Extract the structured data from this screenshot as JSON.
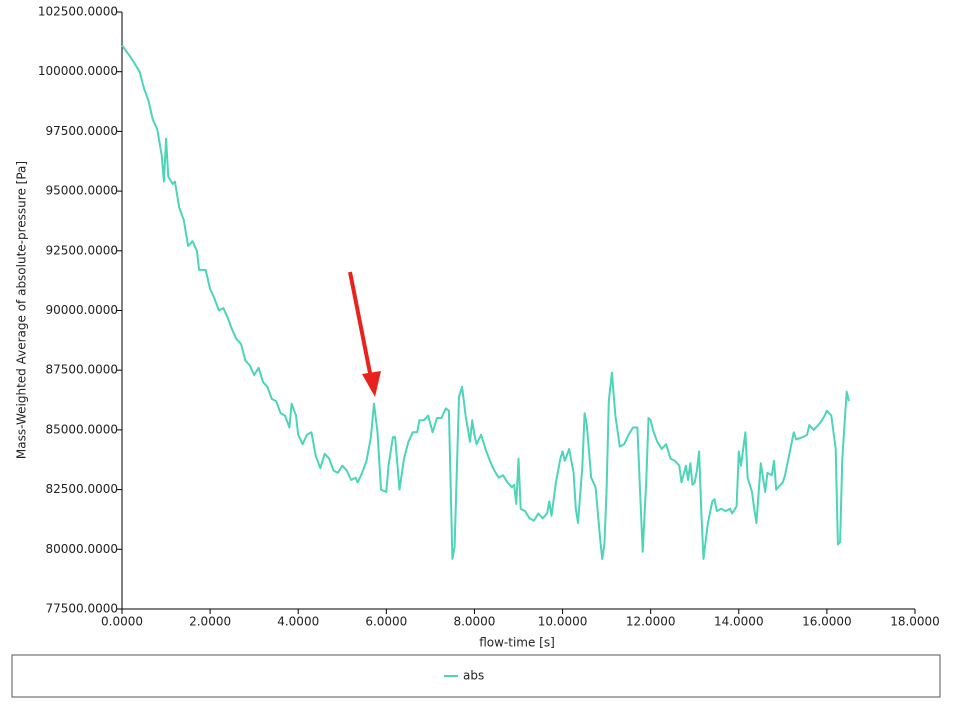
{
  "chart_data": {
    "type": "line",
    "xlabel": "flow-time [s]",
    "ylabel": "Mass-Weighted Average of absolute-pressure [Pa]",
    "xlim": [
      0,
      18
    ],
    "xticks": [
      {
        "value": 0,
        "label": "0.0000"
      },
      {
        "value": 2,
        "label": "2.0000"
      },
      {
        "value": 4,
        "label": "4.0000"
      },
      {
        "value": 6,
        "label": "6.0000"
      },
      {
        "value": 8,
        "label": "8.0000"
      },
      {
        "value": 10,
        "label": "10.0000"
      },
      {
        "value": 12,
        "label": "12.0000"
      },
      {
        "value": 14,
        "label": "14.0000"
      },
      {
        "value": 16,
        "label": "16.0000"
      },
      {
        "value": 18,
        "label": "18.0000"
      }
    ],
    "ylim": [
      77500,
      102500
    ],
    "yticks": [
      {
        "value": 77500,
        "label": "77500.0000"
      },
      {
        "value": 80000,
        "label": "80000.0000"
      },
      {
        "value": 82500,
        "label": "82500.0000"
      },
      {
        "value": 85000,
        "label": "85000.0000"
      },
      {
        "value": 87500,
        "label": "87500.0000"
      },
      {
        "value": 90000,
        "label": "90000.0000"
      },
      {
        "value": 92500,
        "label": "92500.0000"
      },
      {
        "value": 95000,
        "label": "95000.0000"
      },
      {
        "value": 97500,
        "label": "97500.0000"
      },
      {
        "value": 100000,
        "label": "100000.0000"
      },
      {
        "value": 102500,
        "label": "102500.0000"
      }
    ],
    "x": [
      0,
      0.2,
      0.4,
      0.5,
      0.6,
      0.7,
      0.8,
      0.9,
      0.95,
      1.0,
      1.05,
      1.15,
      1.2,
      1.3,
      1.4,
      1.5,
      1.6,
      1.7,
      1.75,
      1.9,
      2.0,
      2.1,
      2.2,
      2.3,
      2.4,
      2.5,
      2.6,
      2.7,
      2.8,
      2.9,
      3.0,
      3.1,
      3.2,
      3.3,
      3.4,
      3.5,
      3.6,
      3.7,
      3.8,
      3.85,
      3.95,
      4.0,
      4.1,
      4.2,
      4.3,
      4.4,
      4.5,
      4.6,
      4.7,
      4.8,
      4.9,
      5.0,
      5.1,
      5.2,
      5.3,
      5.35,
      5.45,
      5.55,
      5.65,
      5.72,
      5.8,
      5.88,
      6.0,
      6.05,
      6.15,
      6.2,
      6.3,
      6.4,
      6.5,
      6.6,
      6.7,
      6.75,
      6.85,
      6.95,
      7.05,
      7.15,
      7.25,
      7.35,
      7.42,
      7.5,
      7.55,
      7.65,
      7.72,
      7.8,
      7.9,
      7.95,
      8.0,
      8.05,
      8.15,
      8.25,
      8.35,
      8.45,
      8.55,
      8.65,
      8.75,
      8.85,
      8.9,
      8.95,
      9.0,
      9.05,
      9.15,
      9.25,
      9.35,
      9.45,
      9.55,
      9.65,
      9.7,
      9.75,
      9.85,
      9.95,
      10.0,
      10.05,
      10.15,
      10.25,
      10.3,
      10.35,
      10.45,
      10.5,
      10.55,
      10.65,
      10.75,
      10.85,
      10.9,
      10.95,
      11.0,
      11.05,
      11.12,
      11.2,
      11.3,
      11.4,
      11.5,
      11.6,
      11.7,
      11.75,
      11.82,
      11.9,
      11.95,
      12.0,
      12.05,
      12.15,
      12.25,
      12.35,
      12.45,
      12.55,
      12.65,
      12.7,
      12.8,
      12.85,
      12.9,
      12.95,
      13.0,
      13.05,
      13.1,
      13.15,
      13.2,
      13.3,
      13.4,
      13.45,
      13.5,
      13.6,
      13.7,
      13.8,
      13.85,
      13.95,
      14.0,
      14.05,
      14.15,
      14.2,
      14.3,
      14.35,
      14.4,
      14.5,
      14.6,
      14.65,
      14.75,
      14.8,
      14.85,
      15.0,
      15.05,
      15.15,
      15.25,
      15.3,
      15.45,
      15.55,
      15.6,
      15.7,
      15.85,
      15.95,
      16.0,
      16.1,
      16.2,
      16.25,
      16.3,
      16.35,
      16.45,
      16.5
    ],
    "series": [
      {
        "name": "abs",
        "color": "#4dd4b9",
        "values": [
          101100,
          100600,
          100000,
          99300,
          98800,
          98000,
          97600,
          96500,
          95400,
          97200,
          95600,
          95300,
          95400,
          94300,
          93800,
          92700,
          92900,
          92500,
          91700,
          91700,
          90900,
          90500,
          90000,
          90100,
          89700,
          89200,
          88800,
          88600,
          87900,
          87700,
          87300,
          87600,
          87000,
          86800,
          86300,
          86200,
          85700,
          85600,
          85100,
          86100,
          85600,
          84800,
          84400,
          84800,
          84900,
          83900,
          83400,
          84000,
          83800,
          83300,
          83200,
          83500,
          83300,
          82900,
          83000,
          82800,
          83200,
          83700,
          84700,
          86100,
          84900,
          82500,
          82400,
          83500,
          84700,
          84700,
          82500,
          83800,
          84500,
          84900,
          84900,
          85400,
          85400,
          85600,
          84900,
          85500,
          85500,
          85900,
          85800,
          79600,
          80100,
          86400,
          86800,
          85600,
          84500,
          85400,
          84800,
          84400,
          84800,
          84200,
          83700,
          83300,
          83000,
          83100,
          82800,
          82600,
          82700,
          81900,
          83800,
          81700,
          81600,
          81300,
          81200,
          81500,
          81300,
          81500,
          82000,
          81400,
          82800,
          83800,
          84100,
          83700,
          84200,
          83200,
          81700,
          81100,
          83500,
          85700,
          85200,
          83000,
          82600,
          80500,
          79600,
          80200,
          82500,
          86200,
          87400,
          85600,
          84300,
          84400,
          84800,
          85100,
          85100,
          82800,
          79900,
          82900,
          85500,
          85400,
          85000,
          84500,
          84200,
          84400,
          83800,
          83700,
          83500,
          82800,
          83500,
          82900,
          83600,
          82700,
          82800,
          83300,
          84100,
          81600,
          79600,
          81100,
          82000,
          82100,
          81600,
          81700,
          81600,
          81700,
          81500,
          81800,
          84100,
          83500,
          84900,
          83000,
          82400,
          81700,
          81100,
          83600,
          82400,
          83200,
          83100,
          83700,
          82500,
          82800,
          83100,
          84000,
          84900,
          84600,
          84700,
          84800,
          85200,
          85000,
          85300,
          85600,
          85800,
          85600,
          84200,
          80200,
          80300,
          83800,
          86600,
          86200
        ]
      }
    ]
  }
}
